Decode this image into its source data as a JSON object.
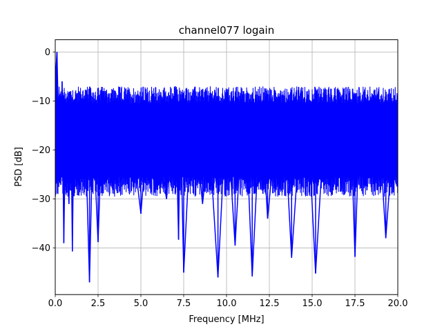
{
  "chart_data": {
    "type": "line",
    "title": "channel077 logain",
    "xlabel": "Frequency [MHz]",
    "ylabel": "PSD [dB]",
    "xlim": [
      0,
      20
    ],
    "ylim": [
      -49.5,
      2.5
    ],
    "grid": true,
    "xticks": [
      0,
      2.5,
      5,
      7.5,
      10,
      12.5,
      15,
      17.5,
      20
    ],
    "xtick_labels": [
      "0.0",
      "2.5",
      "5.0",
      "7.5",
      "10.0",
      "12.5",
      "15.0",
      "17.5",
      "20.0"
    ],
    "yticks": [
      0,
      -10,
      -20,
      -30,
      -40
    ],
    "ytick_labels": [
      "0",
      "−10",
      "−20",
      "−30",
      "−40"
    ],
    "series": [
      {
        "color": "#0000ff",
        "band_upper": -8.5,
        "band_lower": -27,
        "baseline": -18,
        "x": [
          0,
          0.05,
          0.1,
          0.15,
          0.2,
          0.3,
          0.4,
          0.5,
          0.6,
          0.7,
          0.8,
          0.9,
          1.0,
          1.1,
          1.2,
          1.3,
          1.5,
          1.7,
          2.0,
          2.2,
          2.5,
          2.8,
          3.2,
          3.6,
          4.0,
          4.5,
          5.0,
          5.5,
          6.0,
          6.5,
          7.0,
          7.2,
          7.3,
          7.5,
          8.0,
          8.6,
          9.0,
          9.5,
          10.0,
          10.5,
          11.0,
          11.2,
          11.5,
          12.0,
          12.4,
          12.8,
          13.3,
          13.8,
          14.2,
          14.7,
          15.2,
          15.7,
          16.2,
          16.7,
          17.2,
          17.5,
          17.8,
          18.3,
          18.8,
          19.3,
          19.8,
          20.0
        ],
        "y": [
          -16,
          -3,
          0,
          -8,
          -12,
          -22,
          -6,
          -39,
          -14,
          -20,
          -31,
          -8,
          -40.7,
          -10,
          -25,
          -18,
          -22,
          -9,
          -47,
          -15,
          -38.8,
          -8,
          -21,
          -23,
          -10,
          -18,
          -33,
          -11,
          -20,
          -30,
          -7,
          -38.3,
          -12,
          -45,
          -9,
          -31,
          -18,
          -46,
          -11,
          -39.5,
          -8,
          -20,
          -45.8,
          -10,
          -34,
          -19,
          -9,
          -42,
          -21,
          -10,
          -45.2,
          -15,
          -12,
          -19,
          -8,
          -41.8,
          -11,
          -20,
          -9,
          -38,
          -14,
          -13
        ]
      }
    ]
  }
}
